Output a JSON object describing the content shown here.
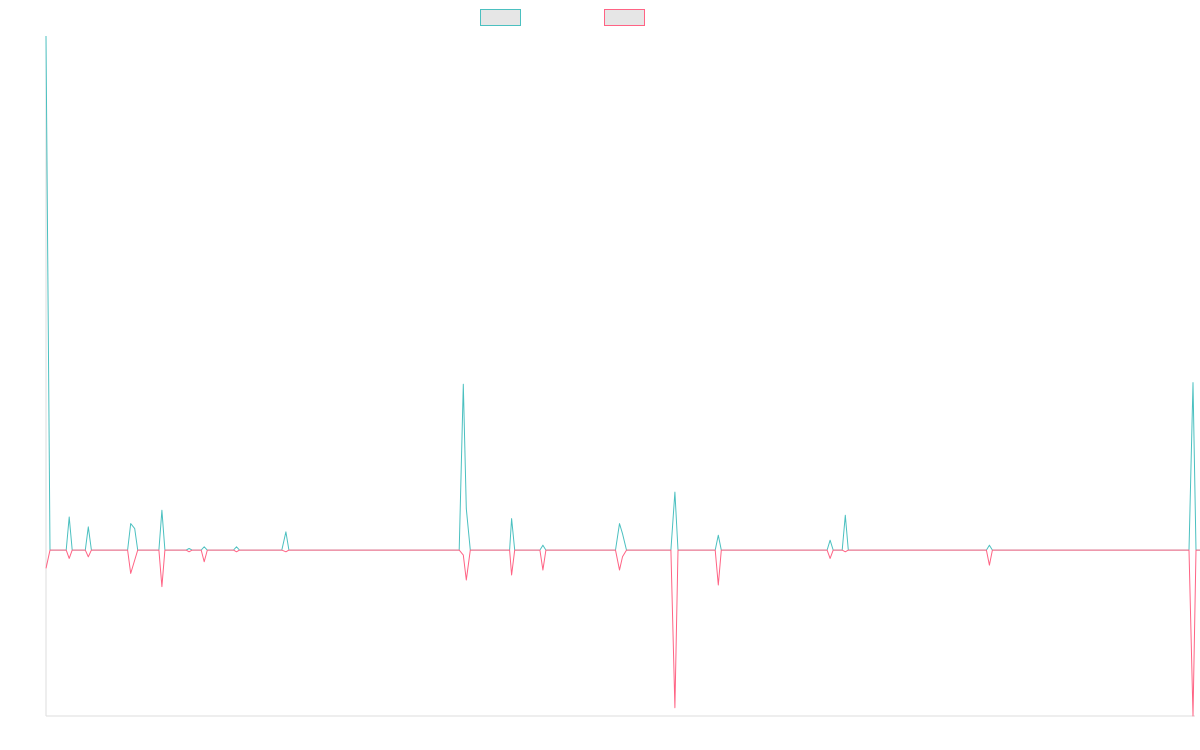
{
  "chart_data": {
    "type": "line",
    "title": "",
    "xlabel": "",
    "ylabel": "",
    "legend_position": "top-center",
    "grid": false,
    "ylim": [
      -100,
      310
    ],
    "xlim": [
      0,
      1140
    ],
    "series": [
      {
        "color": "#4bc0c0",
        "points": [
          [
            0,
            310
          ],
          [
            4,
            0
          ],
          [
            20,
            0
          ],
          [
            23,
            20
          ],
          [
            26,
            0
          ],
          [
            39,
            0
          ],
          [
            42,
            14
          ],
          [
            45,
            0
          ],
          [
            81,
            0
          ],
          [
            84,
            16
          ],
          [
            88,
            13
          ],
          [
            91,
            0
          ],
          [
            112,
            0
          ],
          [
            115,
            24
          ],
          [
            118,
            0
          ],
          [
            139,
            0
          ],
          [
            142,
            1
          ],
          [
            145,
            0
          ],
          [
            154,
            0
          ],
          [
            157,
            2
          ],
          [
            160,
            0
          ],
          [
            186,
            0
          ],
          [
            189,
            2
          ],
          [
            192,
            0
          ],
          [
            234,
            0
          ],
          [
            238,
            11
          ],
          [
            241,
            0
          ],
          [
            410,
            0
          ],
          [
            414,
            100
          ],
          [
            417,
            25
          ],
          [
            421,
            0
          ],
          [
            460,
            0
          ],
          [
            462,
            19
          ],
          [
            465,
            0
          ],
          [
            490,
            0
          ],
          [
            493,
            3
          ],
          [
            496,
            0
          ],
          [
            565,
            0
          ],
          [
            569,
            16
          ],
          [
            572,
            10
          ],
          [
            576,
            0
          ],
          [
            620,
            0
          ],
          [
            624,
            35
          ],
          [
            627,
            0
          ],
          [
            664,
            0
          ],
          [
            667,
            9
          ],
          [
            670,
            0
          ],
          [
            775,
            0
          ],
          [
            778,
            6
          ],
          [
            781,
            0
          ],
          [
            790,
            0
          ],
          [
            793,
            21
          ],
          [
            796,
            0
          ],
          [
            933,
            0
          ],
          [
            936,
            3
          ],
          [
            939,
            0
          ],
          [
            1134,
            0
          ],
          [
            1138,
            101
          ],
          [
            1141,
            0
          ],
          [
            1150,
            0
          ]
        ]
      },
      {
        "color": "#ff6384",
        "points": [
          [
            0,
            -11
          ],
          [
            4,
            0
          ],
          [
            20,
            0
          ],
          [
            23,
            -5
          ],
          [
            26,
            0
          ],
          [
            39,
            0
          ],
          [
            42,
            -4
          ],
          [
            45,
            0
          ],
          [
            81,
            0
          ],
          [
            84,
            -14
          ],
          [
            88,
            -6
          ],
          [
            91,
            0
          ],
          [
            112,
            0
          ],
          [
            115,
            -22
          ],
          [
            118,
            0
          ],
          [
            139,
            0
          ],
          [
            142,
            -1
          ],
          [
            145,
            0
          ],
          [
            154,
            0
          ],
          [
            157,
            -7
          ],
          [
            160,
            0
          ],
          [
            186,
            0
          ],
          [
            189,
            -1
          ],
          [
            192,
            0
          ],
          [
            234,
            0
          ],
          [
            238,
            -1
          ],
          [
            241,
            0
          ],
          [
            410,
            0
          ],
          [
            414,
            -3
          ],
          [
            417,
            -18
          ],
          [
            421,
            0
          ],
          [
            460,
            0
          ],
          [
            462,
            -15
          ],
          [
            465,
            0
          ],
          [
            490,
            0
          ],
          [
            493,
            -12
          ],
          [
            496,
            0
          ],
          [
            565,
            0
          ],
          [
            569,
            -12
          ],
          [
            572,
            -4
          ],
          [
            576,
            0
          ],
          [
            620,
            0
          ],
          [
            624,
            -95
          ],
          [
            627,
            0
          ],
          [
            664,
            0
          ],
          [
            667,
            -21
          ],
          [
            670,
            0
          ],
          [
            775,
            0
          ],
          [
            778,
            -5
          ],
          [
            781,
            0
          ],
          [
            790,
            0
          ],
          [
            793,
            -1
          ],
          [
            796,
            0
          ],
          [
            933,
            0
          ],
          [
            936,
            -9
          ],
          [
            939,
            0
          ],
          [
            1134,
            0
          ],
          [
            1138,
            -100
          ],
          [
            1141,
            0
          ],
          [
            1150,
            0
          ]
        ]
      }
    ]
  }
}
